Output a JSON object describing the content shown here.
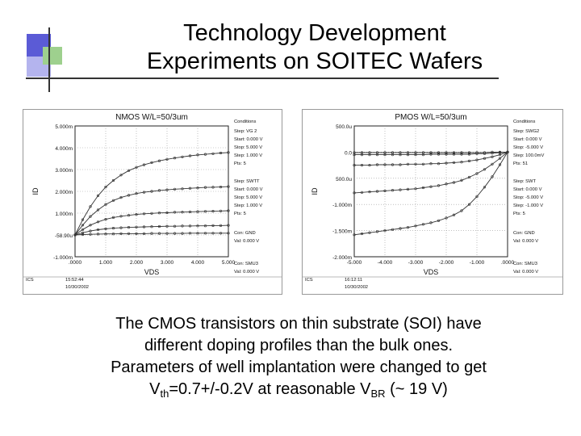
{
  "slide": {
    "title_line1": "Technology Development",
    "title_line2": "Experiments on SOITEC Wafers",
    "caption": {
      "line1": "The CMOS transistors on thin substrate (SOI) have",
      "line2": "different doping profiles than the bulk ones.",
      "line3": "Parameters of well implantation were changed to get",
      "v_main": "V",
      "v_sub": "th",
      "v_rest": "=0.7+/-0.2V at reasonable V",
      "br_sub": "BR",
      "br_rest": " (~ 19 V)"
    }
  },
  "chart_data": [
    {
      "type": "line",
      "title": "NMOS W/L=50/3um",
      "xlabel": "VDS",
      "ylabel": "ID",
      "xlim": [
        0,
        5
      ],
      "ylim": [
        -1,
        5
      ],
      "y_tick_labels": [
        "5.000m",
        "4.000m",
        "3.000m",
        "2.000m",
        "1.000m",
        "-58.90u",
        "-1.000m"
      ],
      "x_tick_labels": [
        ".0000",
        "1.000",
        "2.000",
        "3.000",
        "4.000",
        "5.000"
      ],
      "x": [
        0,
        0.25,
        0.5,
        0.75,
        1,
        1.25,
        1.5,
        1.75,
        2,
        2.25,
        2.5,
        2.75,
        3,
        3.25,
        3.5,
        3.75,
        4,
        4.25,
        4.5,
        4.75,
        5
      ],
      "series": [
        {
          "values": [
            0,
            0.7,
            1.3,
            1.8,
            2.2,
            2.5,
            2.75,
            2.95,
            3.1,
            3.22,
            3.32,
            3.4,
            3.47,
            3.53,
            3.58,
            3.63,
            3.67,
            3.7,
            3.73,
            3.76,
            3.78
          ]
        },
        {
          "values": [
            0,
            0.45,
            0.85,
            1.15,
            1.4,
            1.58,
            1.72,
            1.82,
            1.9,
            1.96,
            2.0,
            2.04,
            2.07,
            2.1,
            2.12,
            2.14,
            2.16,
            2.18,
            2.19,
            2.2,
            2.22
          ]
        },
        {
          "values": [
            0,
            0.25,
            0.45,
            0.6,
            0.72,
            0.8,
            0.86,
            0.9,
            0.94,
            0.97,
            0.99,
            1.01,
            1.02,
            1.04,
            1.05,
            1.06,
            1.07,
            1.08,
            1.09,
            1.1,
            1.11
          ]
        },
        {
          "values": [
            0,
            0.1,
            0.18,
            0.24,
            0.28,
            0.31,
            0.33,
            0.35,
            0.36,
            0.37,
            0.38,
            0.39,
            0.4,
            0.4,
            0.41,
            0.41,
            0.42,
            0.42,
            0.43,
            0.43,
            0.44
          ]
        },
        {
          "values": [
            0,
            0.02,
            0.03,
            0.04,
            0.05,
            0.05,
            0.06,
            0.06,
            0.06,
            0.06,
            0.07,
            0.07,
            0.07,
            0.07,
            0.07,
            0.08,
            0.08,
            0.08,
            0.08,
            0.08,
            0.08
          ]
        }
      ],
      "conditions": [
        "Conditions",
        "Step: VG 2",
        "Start: 0.000 V",
        "Stop: 5.000 V",
        "Step: 1.000 V",
        "Pts: 5",
        "Step: SWTT",
        "Start: 0.000 V",
        "Stop: 5.000 V",
        "Step: 1.000 V",
        "Pts: 5",
        "Con: GND",
        "Val: 0.000 V",
        "Con: SMU3",
        "Val: 0.000 V"
      ],
      "footer": [
        "ICS",
        "15:52:44",
        "10/30/2002"
      ],
      "colors": {
        "axis": "#222222",
        "trace": "#333333",
        "frame": "#999999"
      }
    },
    {
      "type": "line",
      "title": "PMOS W/L=50/3um",
      "xlabel": "VDS",
      "ylabel": "ID",
      "xlim": [
        -5,
        0
      ],
      "ylim": [
        -2,
        0.5
      ],
      "y_tick_labels": [
        "500.0u",
        "0.0",
        "500.0u",
        "-1.000m",
        "-1.500m",
        "-2.000m"
      ],
      "x_tick_labels": [
        "-5.000",
        "-4.000",
        "-3.000",
        "-2.000",
        "-1.000",
        ".0000"
      ],
      "x": [
        -5,
        -4.75,
        -4.5,
        -4.25,
        -4,
        -3.75,
        -3.5,
        -3.25,
        -3,
        -2.75,
        -2.5,
        -2.25,
        -2,
        -1.75,
        -1.5,
        -1.25,
        -1,
        -0.75,
        -0.5,
        -0.25,
        0
      ],
      "series": [
        {
          "values": [
            -1.58,
            -1.56,
            -1.54,
            -1.52,
            -1.5,
            -1.48,
            -1.46,
            -1.44,
            -1.41,
            -1.38,
            -1.35,
            -1.31,
            -1.26,
            -1.2,
            -1.12,
            -1.0,
            -0.85,
            -0.67,
            -0.47,
            -0.24,
            0
          ]
        },
        {
          "values": [
            -0.78,
            -0.77,
            -0.76,
            -0.75,
            -0.74,
            -0.73,
            -0.72,
            -0.71,
            -0.7,
            -0.68,
            -0.66,
            -0.64,
            -0.61,
            -0.58,
            -0.54,
            -0.48,
            -0.41,
            -0.33,
            -0.23,
            -0.12,
            0
          ]
        },
        {
          "values": [
            -0.25,
            -0.25,
            -0.25,
            -0.24,
            -0.24,
            -0.24,
            -0.24,
            -0.23,
            -0.23,
            -0.23,
            -0.22,
            -0.22,
            -0.21,
            -0.2,
            -0.19,
            -0.17,
            -0.15,
            -0.12,
            -0.09,
            -0.05,
            0
          ]
        },
        {
          "values": [
            -0.05,
            -0.05,
            -0.05,
            -0.05,
            -0.05,
            -0.05,
            -0.05,
            -0.05,
            -0.05,
            -0.05,
            -0.04,
            -0.04,
            -0.04,
            -0.04,
            -0.04,
            -0.04,
            -0.03,
            -0.03,
            -0.02,
            -0.01,
            0
          ]
        },
        {
          "values": [
            -0.01,
            -0.01,
            -0.01,
            -0.01,
            -0.01,
            -0.01,
            -0.01,
            -0.01,
            -0.01,
            -0.01,
            -0.01,
            -0.01,
            -0.01,
            -0.01,
            -0.01,
            -0.01,
            -0.01,
            -0.01,
            0,
            0,
            0
          ]
        }
      ],
      "conditions": [
        "Conditions",
        "Step: SWG2",
        "Start: 0.000 V",
        "Stop: -5.000 V",
        "Step: 100.0mV",
        "Pts: 51",
        "Step: SWT",
        "Start: 0.000 V",
        "Stop: -5.000 V",
        "Step: -1.000 V",
        "Pts: 5",
        "Con: GND",
        "Val: 0.000 V",
        "Con: SMU3",
        "Val: 0.000 V"
      ],
      "footer": [
        "ICS",
        "16:12:11",
        "10/30/2002"
      ],
      "colors": {
        "axis": "#222222",
        "trace": "#333333",
        "frame": "#999999"
      }
    }
  ]
}
